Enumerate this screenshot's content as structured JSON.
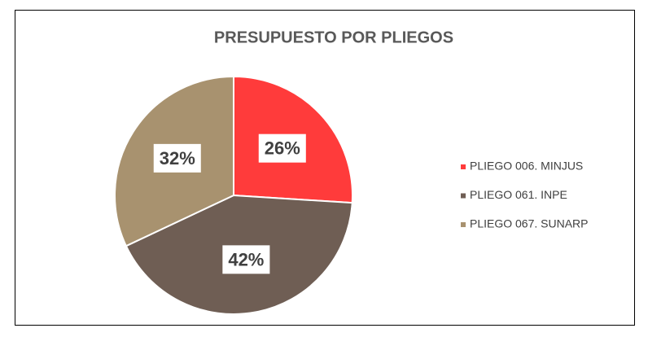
{
  "chart_data": {
    "type": "pie",
    "title": "PRESUPUESTO POR PLIEGOS",
    "categories": [
      "PLIEGO 006. MINJUS",
      "PLIEGO 061. INPE",
      "PLIEGO 067. SUNARP"
    ],
    "values": [
      26,
      42,
      32
    ],
    "value_labels": [
      "26%",
      "42%",
      "32%"
    ],
    "colors": [
      "#ff3b3b",
      "#6f5e54",
      "#a8926f"
    ],
    "legend": "right"
  }
}
